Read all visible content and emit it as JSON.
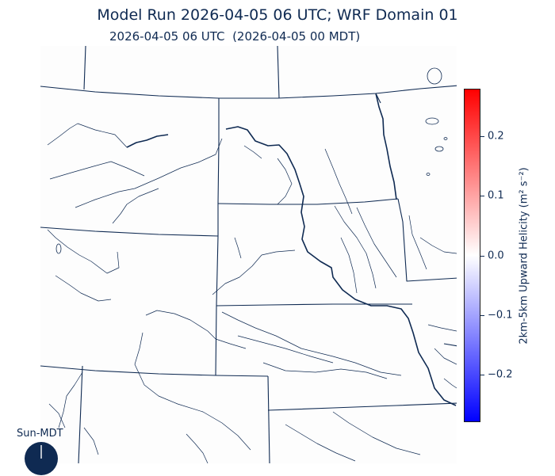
{
  "title": "Model Run 2026-04-05 06 UTC; WRF Domain 01",
  "subtitle": "2026-04-05 06 UTC  (2026-04-05 00 MDT)",
  "colorbar": {
    "label": "2km-5km Upward Helicity (m² s⁻²)",
    "range": [
      -0.28,
      0.28
    ],
    "colors": {
      "top": "#ff0000",
      "middle": "#ffffff",
      "bottom": "#0000ff"
    },
    "ticks": [
      {
        "value": 0.2,
        "label": "0.2"
      },
      {
        "value": 0.1,
        "label": "0.1"
      },
      {
        "value": 0.0,
        "label": "0.0"
      },
      {
        "value": -0.1,
        "label": "−0.1"
      },
      {
        "value": -0.2,
        "label": "−0.2"
      }
    ]
  },
  "sun_dial": {
    "label": "Sun-MDT",
    "color": "#0f2a52"
  },
  "map": {
    "line_color": "#0f2a52",
    "background": "#fdfdfd"
  }
}
